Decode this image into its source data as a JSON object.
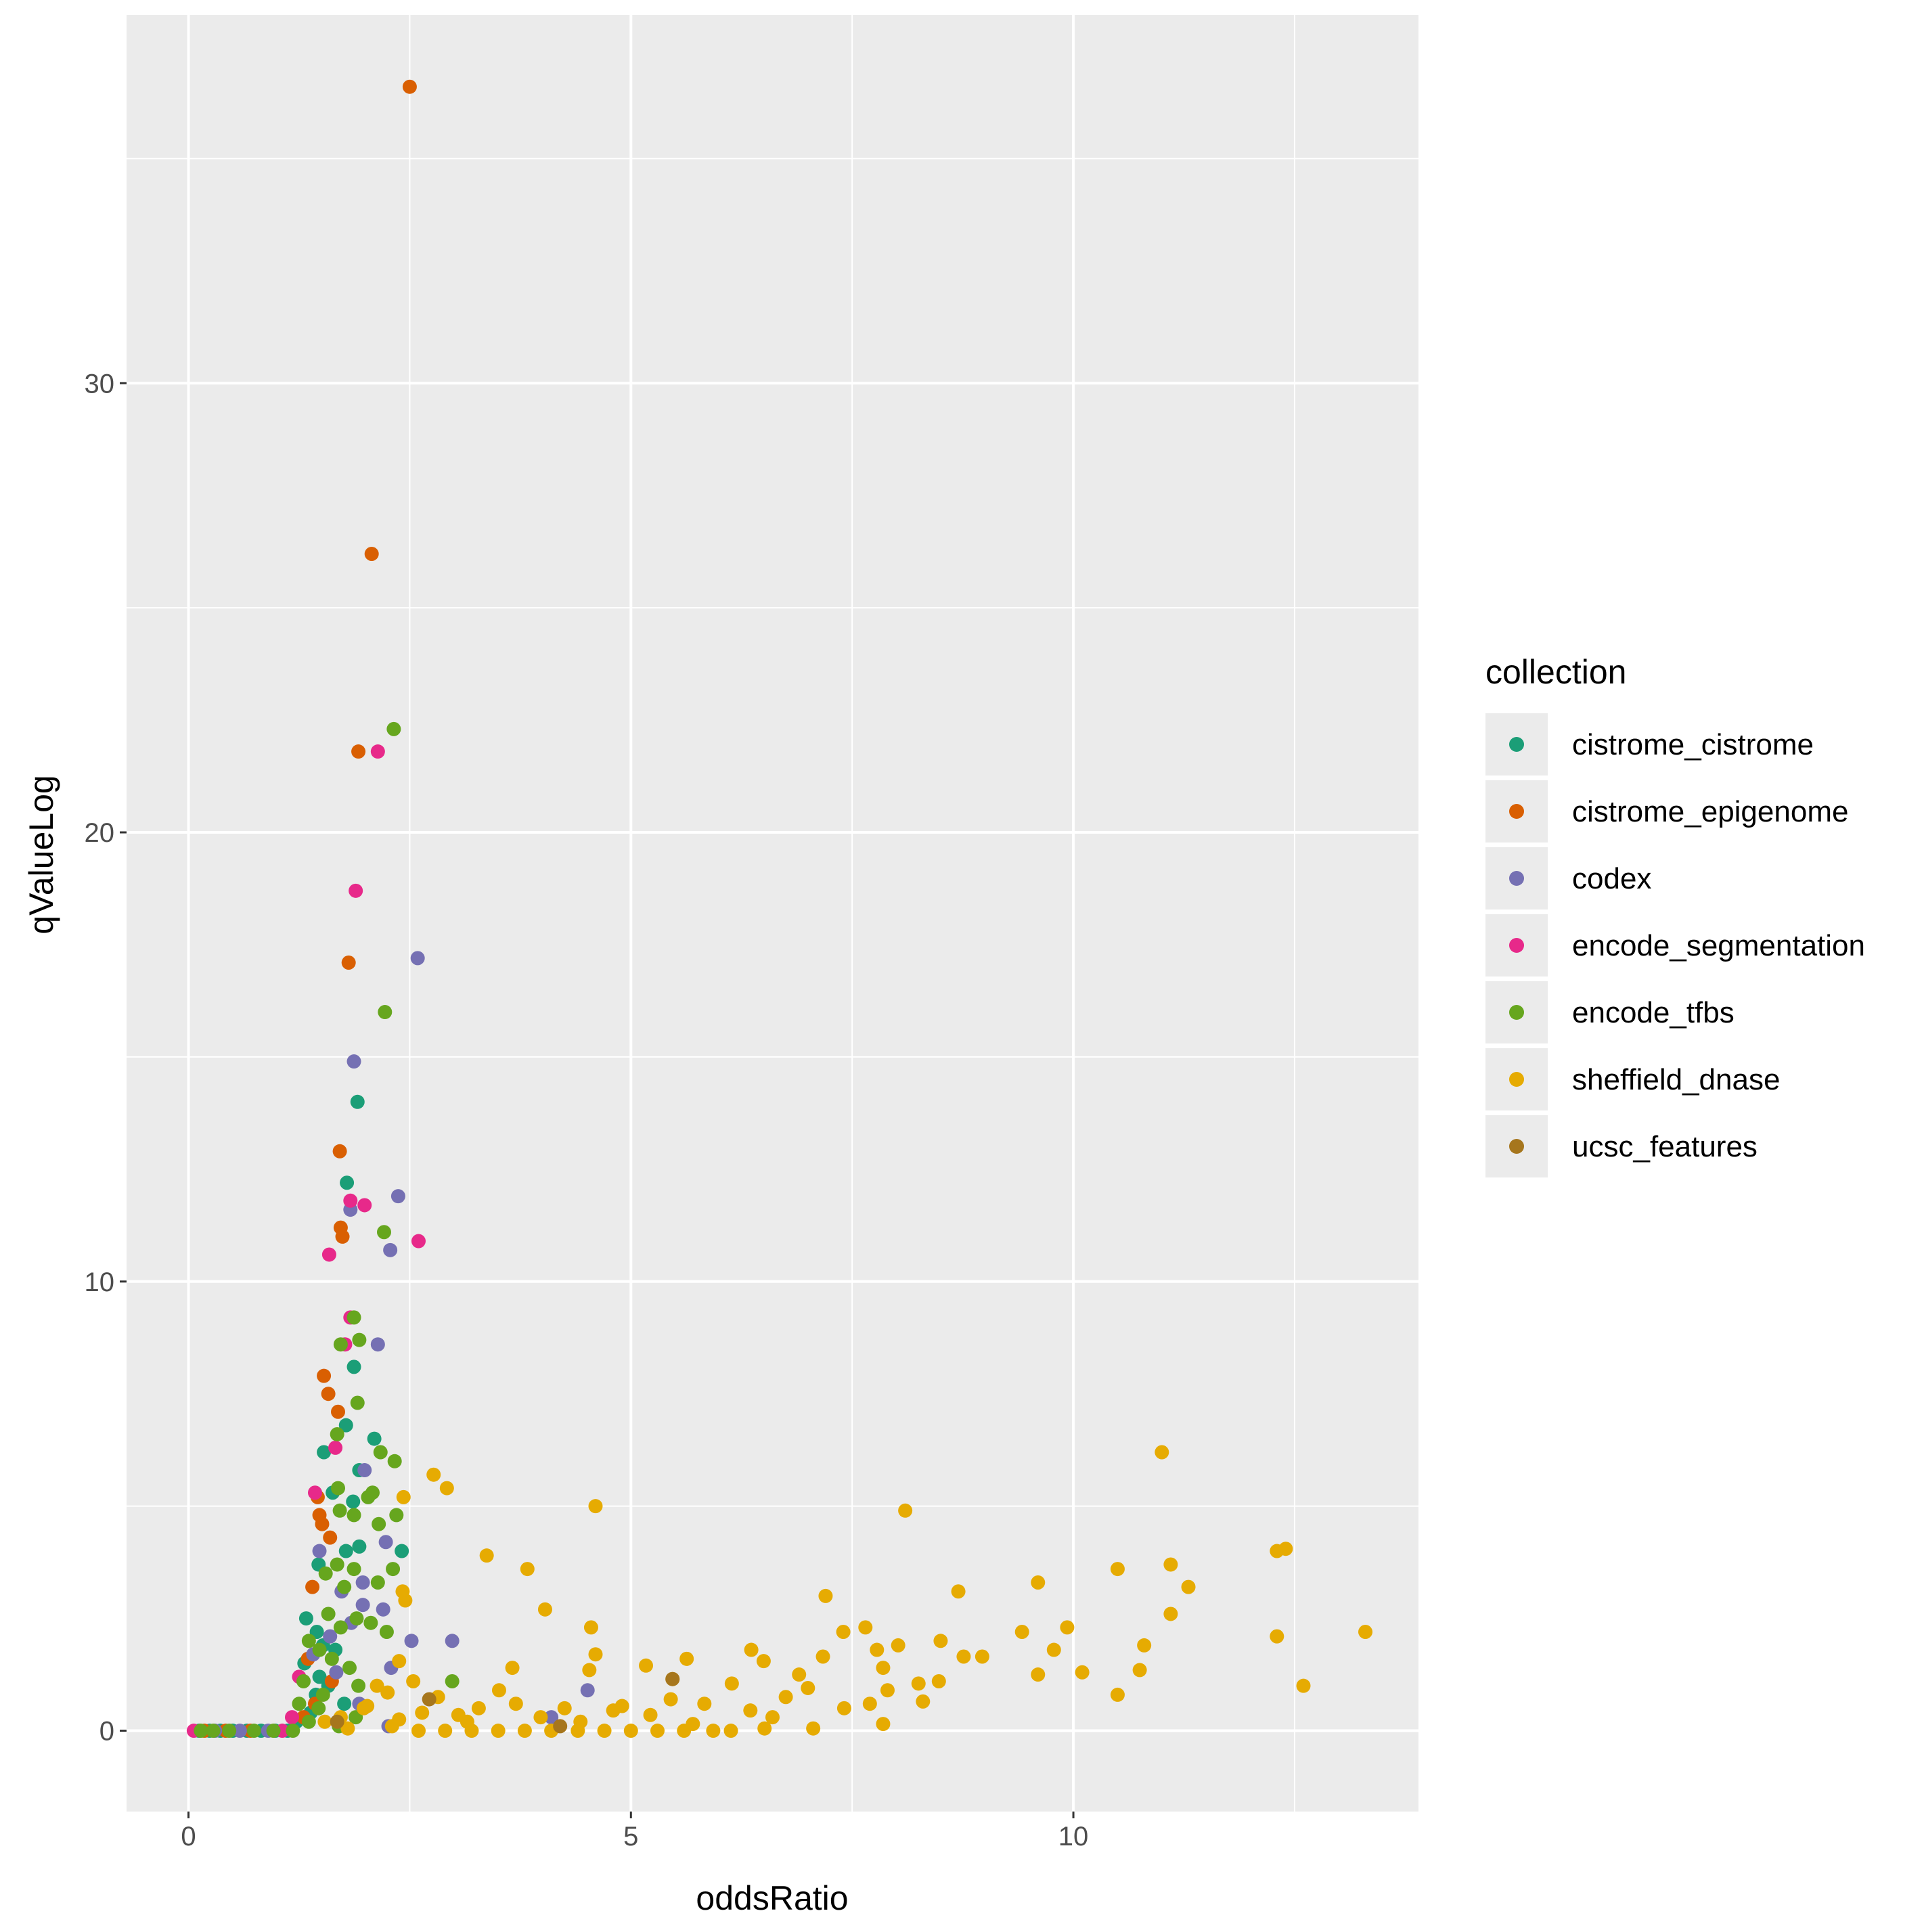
{
  "chart_data": {
    "type": "scatter",
    "title": "",
    "xlabel": "oddsRatio",
    "ylabel": "qValueLog",
    "xlim": [
      -0.7,
      13.9
    ],
    "ylim": [
      -1.8,
      38.2
    ],
    "x_ticks": [
      0,
      5,
      10
    ],
    "y_ticks": [
      0,
      10,
      20,
      30
    ],
    "x_tick_labels": [
      "0",
      "5",
      "10"
    ],
    "y_tick_labels": [
      "0",
      "10",
      "20",
      "30"
    ],
    "grid": true,
    "legend": {
      "title": "collection",
      "position": "right"
    },
    "series": [
      {
        "name": "cistrome_cistrome",
        "color": "#1B9E77",
        "points": [
          [
            1.91,
            14.0
          ],
          [
            1.79,
            12.2
          ],
          [
            1.87,
            8.1
          ],
          [
            2.1,
            6.5
          ],
          [
            1.78,
            6.8
          ],
          [
            1.53,
            6.2
          ],
          [
            1.93,
            5.8
          ],
          [
            1.63,
            5.3
          ],
          [
            1.86,
            5.1
          ],
          [
            1.93,
            4.1
          ],
          [
            1.78,
            4.0
          ],
          [
            1.47,
            3.7
          ],
          [
            2.41,
            4.0
          ],
          [
            1.33,
            2.5
          ],
          [
            1.45,
            2.2
          ],
          [
            1.52,
            1.9
          ],
          [
            1.66,
            1.8
          ],
          [
            1.31,
            1.5
          ],
          [
            1.48,
            1.2
          ],
          [
            1.58,
            1.0
          ],
          [
            1.44,
            0.8
          ],
          [
            1.76,
            0.6
          ],
          [
            1.38,
            0.4
          ],
          [
            1.22,
            0.2
          ],
          [
            0.12,
            0.0
          ],
          [
            0.24,
            0.0
          ],
          [
            0.36,
            0.0
          ],
          [
            0.5,
            0.0
          ],
          [
            0.66,
            0.0
          ],
          [
            0.82,
            0.0
          ],
          [
            0.98,
            0.0
          ],
          [
            1.12,
            0.0
          ]
        ]
      },
      {
        "name": "cistrome_epigenome",
        "color": "#D95F02",
        "points": [
          [
            2.5,
            36.6
          ],
          [
            2.07,
            26.2
          ],
          [
            1.92,
            21.8
          ],
          [
            1.81,
            17.1
          ],
          [
            1.71,
            12.9
          ],
          [
            1.72,
            11.2
          ],
          [
            1.74,
            11.0
          ],
          [
            1.53,
            7.9
          ],
          [
            1.58,
            7.5
          ],
          [
            1.69,
            7.1
          ],
          [
            1.46,
            5.2
          ],
          [
            1.48,
            4.8
          ],
          [
            1.51,
            4.6
          ],
          [
            1.6,
            4.3
          ],
          [
            1.4,
            3.2
          ],
          [
            1.35,
            1.6
          ],
          [
            1.62,
            1.1
          ],
          [
            1.43,
            0.6
          ],
          [
            1.3,
            0.3
          ],
          [
            0.18,
            0.0
          ],
          [
            0.42,
            0.0
          ],
          [
            0.7,
            0.0
          ]
        ]
      },
      {
        "name": "codex",
        "color": "#7570B3",
        "points": [
          [
            2.59,
            17.2
          ],
          [
            1.87,
            14.9
          ],
          [
            1.83,
            11.6
          ],
          [
            2.37,
            11.9
          ],
          [
            2.28,
            10.7
          ],
          [
            2.14,
            8.6
          ],
          [
            1.99,
            5.8
          ],
          [
            2.23,
            4.2
          ],
          [
            1.48,
            4.0
          ],
          [
            1.97,
            3.3
          ],
          [
            1.73,
            3.1
          ],
          [
            2.2,
            2.7
          ],
          [
            1.97,
            2.8
          ],
          [
            1.84,
            2.4
          ],
          [
            2.52,
            2.0
          ],
          [
            2.98,
            2.0
          ],
          [
            1.6,
            2.1
          ],
          [
            1.41,
            1.7
          ],
          [
            2.29,
            1.4
          ],
          [
            1.67,
            1.3
          ],
          [
            4.51,
            0.9
          ],
          [
            1.93,
            0.6
          ],
          [
            2.26,
            0.1
          ],
          [
            4.1,
            0.3
          ],
          [
            0.3,
            0.0
          ],
          [
            0.58,
            0.0
          ],
          [
            0.9,
            0.0
          ]
        ]
      },
      {
        "name": "encode_segmentation",
        "color": "#E7298A",
        "points": [
          [
            2.14,
            21.8
          ],
          [
            1.89,
            18.7
          ],
          [
            1.83,
            11.8
          ],
          [
            1.99,
            11.7
          ],
          [
            2.6,
            10.9
          ],
          [
            1.59,
            10.6
          ],
          [
            1.83,
            9.2
          ],
          [
            1.77,
            8.6
          ],
          [
            1.66,
            6.3
          ],
          [
            1.43,
            5.3
          ],
          [
            1.25,
            1.2
          ],
          [
            1.17,
            0.3
          ],
          [
            0.06,
            0.0
          ],
          [
            1.06,
            0.0
          ]
        ]
      },
      {
        "name": "encode_tfbs",
        "color": "#66A61E",
        "points": [
          [
            2.32,
            22.3
          ],
          [
            2.22,
            16.0
          ],
          [
            2.21,
            11.1
          ],
          [
            1.87,
            9.2
          ],
          [
            1.93,
            8.7
          ],
          [
            1.72,
            8.6
          ],
          [
            1.91,
            7.3
          ],
          [
            1.68,
            6.6
          ],
          [
            2.17,
            6.2
          ],
          [
            2.33,
            6.0
          ],
          [
            1.69,
            5.4
          ],
          [
            2.03,
            5.2
          ],
          [
            2.08,
            5.3
          ],
          [
            1.87,
            4.8
          ],
          [
            1.71,
            4.9
          ],
          [
            2.35,
            4.8
          ],
          [
            2.15,
            4.6
          ],
          [
            2.31,
            3.6
          ],
          [
            1.87,
            3.6
          ],
          [
            1.68,
            3.7
          ],
          [
            1.55,
            3.5
          ],
          [
            2.14,
            3.3
          ],
          [
            1.76,
            3.2
          ],
          [
            1.9,
            2.5
          ],
          [
            2.06,
            2.4
          ],
          [
            1.58,
            2.6
          ],
          [
            1.72,
            2.3
          ],
          [
            2.24,
            2.2
          ],
          [
            1.36,
            2.0
          ],
          [
            1.48,
            1.8
          ],
          [
            1.62,
            1.6
          ],
          [
            1.82,
            1.4
          ],
          [
            1.3,
            1.1
          ],
          [
            1.92,
            1.0
          ],
          [
            2.98,
            1.1
          ],
          [
            1.52,
            0.8
          ],
          [
            1.25,
            0.6
          ],
          [
            1.47,
            0.5
          ],
          [
            1.89,
            0.3
          ],
          [
            1.36,
            0.2
          ],
          [
            1.7,
            0.1
          ],
          [
            1.18,
            0.0
          ],
          [
            0.14,
            0.0
          ],
          [
            0.28,
            0.0
          ],
          [
            0.46,
            0.0
          ],
          [
            0.74,
            0.0
          ],
          [
            0.96,
            0.0
          ]
        ]
      },
      {
        "name": "sheffield_dnase",
        "color": "#E6AB02",
        "points": [
          [
            11.0,
            6.2
          ],
          [
            8.1,
            4.9
          ],
          [
            4.6,
            5.0
          ],
          [
            2.77,
            5.7
          ],
          [
            2.92,
            5.4
          ],
          [
            2.43,
            5.2
          ],
          [
            3.37,
            3.9
          ],
          [
            3.83,
            3.6
          ],
          [
            12.3,
            4.0
          ],
          [
            12.4,
            4.05
          ],
          [
            11.1,
            3.7
          ],
          [
            10.5,
            3.6
          ],
          [
            9.6,
            3.3
          ],
          [
            11.3,
            3.2
          ],
          [
            8.7,
            3.1
          ],
          [
            7.2,
            3.0
          ],
          [
            2.42,
            3.1
          ],
          [
            2.45,
            2.9
          ],
          [
            4.03,
            2.7
          ],
          [
            11.1,
            2.6
          ],
          [
            4.55,
            2.3
          ],
          [
            7.4,
            2.2
          ],
          [
            7.65,
            2.3
          ],
          [
            9.42,
            2.2
          ],
          [
            9.93,
            2.3
          ],
          [
            12.3,
            2.1
          ],
          [
            13.3,
            2.2
          ],
          [
            8.5,
            2.0
          ],
          [
            8.02,
            1.9
          ],
          [
            7.78,
            1.8
          ],
          [
            6.36,
            1.8
          ],
          [
            10.8,
            1.9
          ],
          [
            9.78,
            1.8
          ],
          [
            4.6,
            1.7
          ],
          [
            5.63,
            1.6
          ],
          [
            7.17,
            1.65
          ],
          [
            8.76,
            1.65
          ],
          [
            8.97,
            1.65
          ],
          [
            2.38,
            1.55
          ],
          [
            5.17,
            1.45
          ],
          [
            7.85,
            1.4
          ],
          [
            6.5,
            1.55
          ],
          [
            10.75,
            1.35
          ],
          [
            6.9,
            1.25
          ],
          [
            9.6,
            1.25
          ],
          [
            10.1,
            1.3
          ],
          [
            4.53,
            1.35
          ],
          [
            3.66,
            1.4
          ],
          [
            5.47,
            1.15
          ],
          [
            6.14,
            1.05
          ],
          [
            8.25,
            1.05
          ],
          [
            8.48,
            1.1
          ],
          [
            12.6,
            1.0
          ],
          [
            7.0,
            0.95
          ],
          [
            7.9,
            0.9
          ],
          [
            3.51,
            0.9
          ],
          [
            2.25,
            0.85
          ],
          [
            10.5,
            0.8
          ],
          [
            6.75,
            0.75
          ],
          [
            7.7,
            0.6
          ],
          [
            8.3,
            0.65
          ],
          [
            5.83,
            0.6
          ],
          [
            2.02,
            0.55
          ],
          [
            3.28,
            0.5
          ],
          [
            4.8,
            0.45
          ],
          [
            6.35,
            0.45
          ],
          [
            7.41,
            0.5
          ],
          [
            2.64,
            0.4
          ],
          [
            5.22,
            0.35
          ],
          [
            3.98,
            0.3
          ],
          [
            6.6,
            0.3
          ],
          [
            2.38,
            0.25
          ],
          [
            4.43,
            0.2
          ],
          [
            3.15,
            0.2
          ],
          [
            5.7,
            0.15
          ],
          [
            7.06,
            0.05
          ],
          [
            7.85,
            0.15
          ],
          [
            6.13,
            0.0
          ],
          [
            5.93,
            0.0
          ],
          [
            6.51,
            0.05
          ],
          [
            2.13,
            1.0
          ],
          [
            2.54,
            1.1
          ],
          [
            2.82,
            0.75
          ],
          [
            1.98,
            0.5
          ],
          [
            1.72,
            0.3
          ],
          [
            1.54,
            0.2
          ],
          [
            2.6,
            0.0
          ],
          [
            2.9,
            0.0
          ],
          [
            3.2,
            0.0
          ],
          [
            3.5,
            0.0
          ],
          [
            3.8,
            0.0
          ],
          [
            4.1,
            0.0
          ],
          [
            4.4,
            0.0
          ],
          [
            4.7,
            0.0
          ],
          [
            5.0,
            0.0
          ],
          [
            5.3,
            0.0
          ],
          [
            5.6,
            0.0
          ],
          [
            4.25,
            0.5
          ],
          [
            4.9,
            0.55
          ],
          [
            5.45,
            0.7
          ],
          [
            3.7,
            0.6
          ],
          [
            3.05,
            0.35
          ],
          [
            2.3,
            0.1
          ],
          [
            1.8,
            0.05
          ]
        ]
      },
      {
        "name": "ucsc_features",
        "color": "#A6761D",
        "points": [
          [
            5.47,
            1.15
          ],
          [
            2.72,
            0.7
          ],
          [
            1.68,
            0.2
          ],
          [
            4.2,
            0.1
          ]
        ]
      }
    ]
  }
}
